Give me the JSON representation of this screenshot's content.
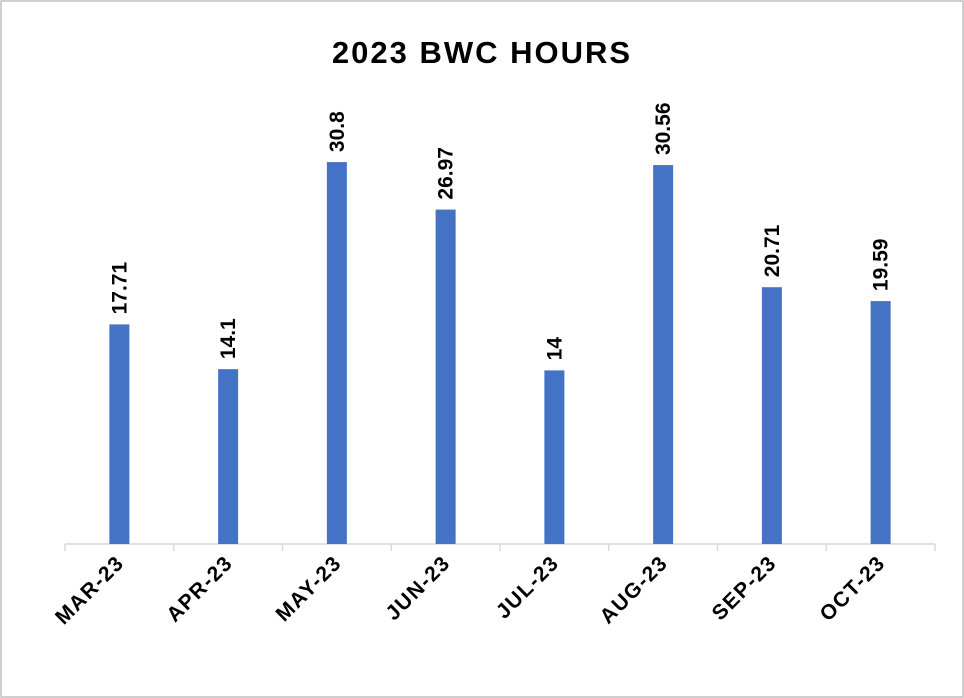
{
  "chart_data": {
    "type": "bar",
    "title": "2023 BWC HOURS",
    "categories": [
      "MAR-23",
      "APR-23",
      "MAY-23",
      "JUN-23",
      "JUL-23",
      "AUG-23",
      "SEP-23",
      "OCT-23"
    ],
    "values": [
      17.71,
      14.1,
      30.8,
      26.97,
      14,
      30.56,
      20.71,
      19.59
    ],
    "color": "#4472c4",
    "ylim": [
      0,
      35
    ]
  }
}
